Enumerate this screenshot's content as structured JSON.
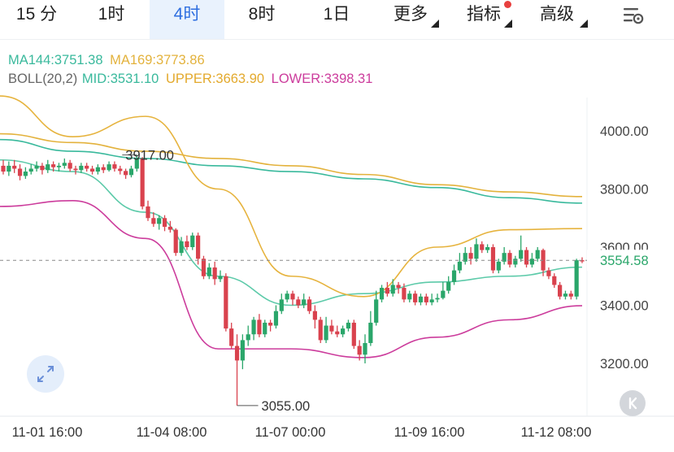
{
  "tabs": [
    {
      "label": "15 分",
      "active": false
    },
    {
      "label": "1时",
      "active": false
    },
    {
      "label": "4时",
      "active": true
    },
    {
      "label": "8时",
      "active": false
    },
    {
      "label": "1日",
      "active": false
    },
    {
      "label": "更多",
      "active": false,
      "dropdown": true
    },
    {
      "label": "指标",
      "active": false,
      "dropdown": true,
      "badge": true
    },
    {
      "label": "高级",
      "active": false,
      "dropdown": true
    }
  ],
  "settings_icon": "chart-settings-icon",
  "indicators": {
    "ma144": "MA144:3751.38",
    "ma169": "MA169:3773.86",
    "boll_name": "BOLL(20,2)",
    "boll_mid": "MID:3531.10",
    "boll_upper": "UPPER:3663.90",
    "boll_lower": "LOWER:3398.31"
  },
  "colors": {
    "up": "#2aa66a",
    "down": "#d9424e",
    "ma144": "#39b99c",
    "ma169": "#e3b23c",
    "boll_mid": "#5ccaa9",
    "boll_upper": "#e6b33d",
    "boll_lower": "#cc3c9c",
    "active_tab": "#2f6fe0",
    "active_bg": "#e9f2fd",
    "price_tag": "#2aa66a"
  },
  "price_axis": [
    "4000.00",
    "3800.00",
    "3600.00",
    "3400.00",
    "3200.00"
  ],
  "current_price": "3554.58",
  "high_label": "3917.00",
  "low_label": "3055.00",
  "time_axis": [
    "11-01 16:00",
    "11-04 08:00",
    "11-07 00:00",
    "11-09 16:00",
    "11-12 08:00"
  ],
  "expand_icon": "expand-icon",
  "scroll_to_latest_icon": "scroll-to-latest-icon",
  "chart_data": {
    "type": "candlestick",
    "interval": "4时",
    "y_ticks": [
      4000,
      3800,
      3600,
      3400,
      3200
    ],
    "last_price": 3554.58,
    "annotations": [
      {
        "text": "3917.00",
        "value": 3917
      },
      {
        "text": "3055.00",
        "value": 3055
      }
    ],
    "x_ticks": [
      "11-01 16:00",
      "11-04 08:00",
      "11-07 00:00",
      "11-09 16:00",
      "11-12 08:00"
    ],
    "candles": [
      [
        3880,
        3860,
        3900,
        3850
      ],
      [
        3860,
        3880,
        3895,
        3845
      ],
      [
        3880,
        3870,
        3900,
        3855
      ],
      [
        3870,
        3845,
        3885,
        3830
      ],
      [
        3845,
        3860,
        3875,
        3835
      ],
      [
        3860,
        3870,
        3885,
        3850
      ],
      [
        3870,
        3880,
        3895,
        3860
      ],
      [
        3880,
        3865,
        3890,
        3850
      ],
      [
        3865,
        3885,
        3900,
        3855
      ],
      [
        3885,
        3875,
        3895,
        3860
      ],
      [
        3875,
        3880,
        3890,
        3860
      ],
      [
        3880,
        3890,
        3905,
        3870
      ],
      [
        3890,
        3870,
        3900,
        3860
      ],
      [
        3870,
        3865,
        3880,
        3850
      ],
      [
        3865,
        3880,
        3890,
        3855
      ],
      [
        3880,
        3870,
        3890,
        3860
      ],
      [
        3870,
        3860,
        3880,
        3850
      ],
      [
        3860,
        3875,
        3885,
        3850
      ],
      [
        3875,
        3865,
        3885,
        3855
      ],
      [
        3865,
        3885,
        3895,
        3860
      ],
      [
        3885,
        3870,
        3895,
        3860
      ],
      [
        3870,
        3862,
        3880,
        3850
      ],
      [
        3862,
        3848,
        3870,
        3835
      ],
      [
        3848,
        3870,
        3880,
        3840
      ],
      [
        3870,
        3905,
        3917,
        3860
      ],
      [
        3905,
        3740,
        3910,
        3730
      ],
      [
        3740,
        3700,
        3760,
        3690
      ],
      [
        3700,
        3680,
        3720,
        3670
      ],
      [
        3680,
        3700,
        3710,
        3660
      ],
      [
        3700,
        3670,
        3710,
        3655
      ],
      [
        3670,
        3660,
        3690,
        3650
      ],
      [
        3660,
        3580,
        3665,
        3570
      ],
      [
        3580,
        3620,
        3635,
        3570
      ],
      [
        3620,
        3600,
        3640,
        3590
      ],
      [
        3600,
        3640,
        3650,
        3590
      ],
      [
        3640,
        3560,
        3650,
        3540
      ],
      [
        3560,
        3500,
        3570,
        3490
      ],
      [
        3500,
        3530,
        3545,
        3490
      ],
      [
        3530,
        3490,
        3550,
        3470
      ],
      [
        3490,
        3500,
        3520,
        3480
      ],
      [
        3500,
        3320,
        3510,
        3310
      ],
      [
        3320,
        3260,
        3340,
        3250
      ],
      [
        3260,
        3210,
        3300,
        3055
      ],
      [
        3210,
        3280,
        3300,
        3180
      ],
      [
        3280,
        3300,
        3330,
        3260
      ],
      [
        3300,
        3350,
        3360,
        3280
      ],
      [
        3350,
        3300,
        3370,
        3290
      ],
      [
        3300,
        3340,
        3350,
        3290
      ],
      [
        3340,
        3330,
        3350,
        3310
      ],
      [
        3330,
        3380,
        3400,
        3320
      ],
      [
        3380,
        3420,
        3440,
        3370
      ],
      [
        3420,
        3440,
        3450,
        3410
      ],
      [
        3440,
        3420,
        3450,
        3400
      ],
      [
        3420,
        3400,
        3430,
        3390
      ],
      [
        3400,
        3420,
        3440,
        3390
      ],
      [
        3420,
        3380,
        3430,
        3370
      ],
      [
        3380,
        3350,
        3400,
        3320
      ],
      [
        3350,
        3280,
        3360,
        3270
      ],
      [
        3280,
        3330,
        3360,
        3270
      ],
      [
        3330,
        3310,
        3350,
        3300
      ],
      [
        3310,
        3300,
        3330,
        3290
      ],
      [
        3300,
        3320,
        3330,
        3290
      ],
      [
        3320,
        3340,
        3350,
        3310
      ],
      [
        3340,
        3260,
        3350,
        3250
      ],
      [
        3260,
        3230,
        3280,
        3210
      ],
      [
        3230,
        3270,
        3300,
        3200
      ],
      [
        3270,
        3340,
        3380,
        3260
      ],
      [
        3340,
        3420,
        3450,
        3330
      ],
      [
        3420,
        3460,
        3470,
        3410
      ],
      [
        3460,
        3440,
        3480,
        3430
      ],
      [
        3440,
        3470,
        3490,
        3430
      ],
      [
        3470,
        3460,
        3480,
        3440
      ],
      [
        3460,
        3420,
        3475,
        3410
      ],
      [
        3420,
        3440,
        3450,
        3410
      ],
      [
        3440,
        3410,
        3450,
        3400
      ],
      [
        3410,
        3430,
        3440,
        3400
      ],
      [
        3430,
        3410,
        3440,
        3400
      ],
      [
        3410,
        3420,
        3440,
        3400
      ],
      [
        3420,
        3425,
        3440,
        3410
      ],
      [
        3425,
        3450,
        3480,
        3420
      ],
      [
        3450,
        3480,
        3500,
        3440
      ],
      [
        3480,
        3520,
        3540,
        3470
      ],
      [
        3520,
        3550,
        3580,
        3510
      ],
      [
        3550,
        3580,
        3600,
        3540
      ],
      [
        3580,
        3560,
        3600,
        3540
      ],
      [
        3560,
        3610,
        3630,
        3550
      ],
      [
        3610,
        3590,
        3620,
        3580
      ],
      [
        3590,
        3600,
        3610,
        3580
      ],
      [
        3600,
        3520,
        3610,
        3510
      ],
      [
        3520,
        3550,
        3560,
        3510
      ],
      [
        3550,
        3580,
        3600,
        3540
      ],
      [
        3580,
        3540,
        3590,
        3530
      ],
      [
        3540,
        3560,
        3570,
        3530
      ],
      [
        3560,
        3590,
        3640,
        3550
      ],
      [
        3590,
        3540,
        3600,
        3530
      ],
      [
        3540,
        3560,
        3580,
        3530
      ],
      [
        3560,
        3590,
        3600,
        3550
      ],
      [
        3590,
        3520,
        3595,
        3500
      ],
      [
        3520,
        3500,
        3530,
        3490
      ],
      [
        3500,
        3470,
        3510,
        3460
      ],
      [
        3470,
        3430,
        3480,
        3420
      ],
      [
        3430,
        3440,
        3450,
        3420
      ],
      [
        3440,
        3430,
        3450,
        3420
      ],
      [
        3430,
        3555,
        3560,
        3420
      ],
      [
        3555,
        3554.58,
        3565,
        3545
      ]
    ],
    "series": [
      {
        "name": "MA144",
        "values": [
          3970,
          3930,
          3905,
          3880,
          3860,
          3835,
          3805,
          3770,
          3751.38
        ]
      },
      {
        "name": "MA169",
        "values": [
          3990,
          3960,
          3930,
          3905,
          3880,
          3850,
          3815,
          3790,
          3773.86
        ]
      },
      {
        "name": "MID",
        "values": [
          3900,
          3860,
          3720,
          3500,
          3400,
          3440,
          3480,
          3500,
          3531.1
        ]
      },
      {
        "name": "UPPER",
        "values": [
          4120,
          3980,
          4050,
          3800,
          3500,
          3430,
          3600,
          3660,
          3663.9
        ]
      },
      {
        "name": "LOWER",
        "values": [
          3740,
          3760,
          3630,
          3250,
          3250,
          3220,
          3290,
          3350,
          3398.31
        ]
      }
    ]
  }
}
